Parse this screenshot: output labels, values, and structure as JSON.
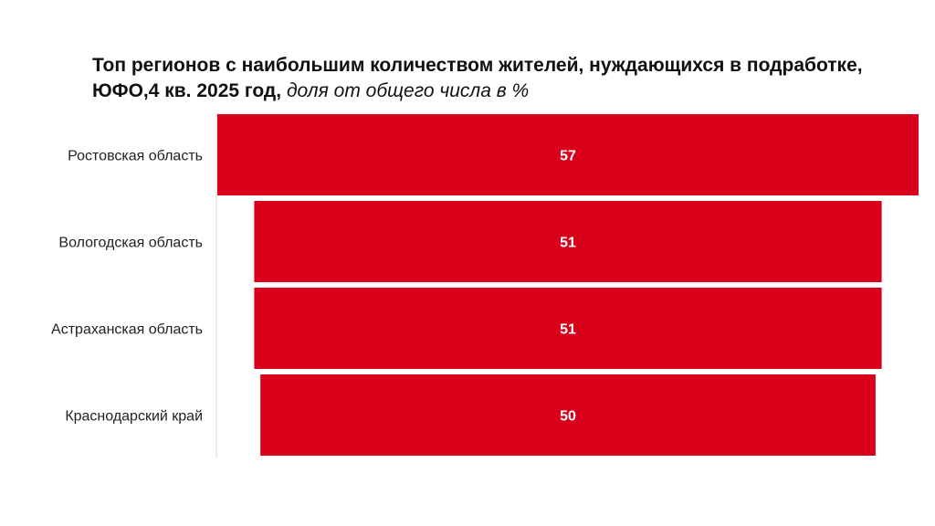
{
  "chart_data": {
    "type": "bar",
    "orientation": "horizontal",
    "title": "Топ регионов с наибольшим количеством жителей, нуждающихся в подработке, ЮФО,4 кв. 2025 год,",
    "subtitle": "доля от общего числа в %",
    "categories": [
      "Ростовская область",
      "Вологодская область",
      "Астраханская область",
      "Краснодарский край"
    ],
    "values": [
      57,
      51,
      51,
      50
    ],
    "value_labels": [
      "57",
      "51",
      "51",
      "50"
    ],
    "bar_color": "#d9001b",
    "grid": false,
    "legend": "none",
    "style": "funnel-centered"
  }
}
